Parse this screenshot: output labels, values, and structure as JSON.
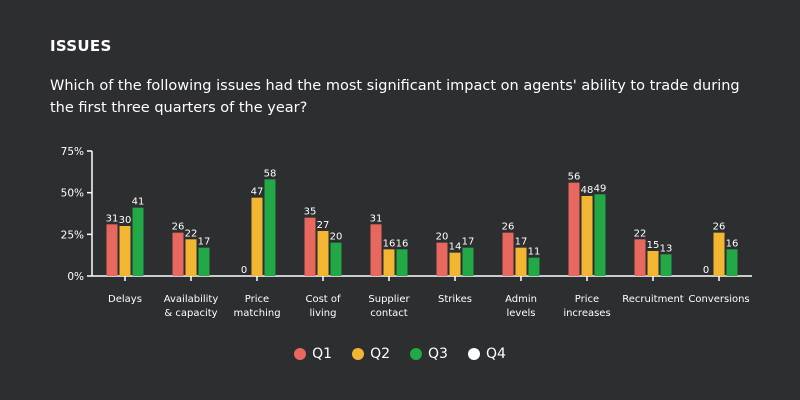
{
  "heading": "ISSUES",
  "subtitle": "Which of the following issues had the most significant impact on agents' ability to trade during the first three quarters of the year?",
  "colors": {
    "Q1": "#e8685f",
    "Q2": "#f2b632",
    "Q3": "#22a846",
    "Q4": "#ffffff",
    "axis": "#ffffff",
    "text": "#ffffff",
    "background": "#2d2e30"
  },
  "chart_data": {
    "type": "bar",
    "title": "",
    "xlabel": "",
    "ylabel": "",
    "ylim": [
      0,
      75
    ],
    "yticks": [
      0,
      25,
      50,
      75
    ],
    "ytick_labels": [
      "0%",
      "25%",
      "50%",
      "75%"
    ],
    "categories": [
      [
        "Delays"
      ],
      [
        "Availability",
        "& capacity"
      ],
      [
        "Price",
        "matching"
      ],
      [
        "Cost of",
        "living"
      ],
      [
        "Supplier",
        "contact"
      ],
      [
        "Strikes"
      ],
      [
        "Admin",
        "levels"
      ],
      [
        "Price",
        "increases"
      ],
      [
        "Recruitment"
      ],
      [
        "Conversions"
      ]
    ],
    "series": [
      {
        "name": "Q1",
        "values": [
          31,
          26,
          0,
          35,
          31,
          20,
          26,
          56,
          22,
          0
        ]
      },
      {
        "name": "Q2",
        "values": [
          30,
          22,
          47,
          27,
          16,
          14,
          17,
          48,
          15,
          26
        ]
      },
      {
        "name": "Q3",
        "values": [
          41,
          17,
          58,
          20,
          16,
          17,
          11,
          49,
          13,
          16
        ]
      },
      {
        "name": "Q4",
        "values": [
          null,
          null,
          null,
          null,
          null,
          null,
          null,
          null,
          null,
          null
        ]
      }
    ],
    "legend_position": "bottom-center",
    "grid": false
  }
}
